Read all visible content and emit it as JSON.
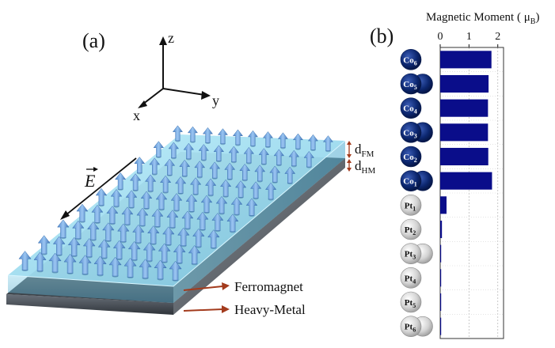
{
  "panel_a": {
    "label": "(a)",
    "axes": {
      "z": "z",
      "y": "y",
      "x": "x"
    },
    "field_symbol": "E",
    "d_fm": {
      "base": "d",
      "sub": "FM"
    },
    "d_hm": {
      "base": "d",
      "sub": "HM"
    },
    "ferromagnet_label": "Ferromagnet",
    "heavy_metal_label": "Heavy-Metal",
    "colors": {
      "ferromagnet_layer": "#a9e2f3",
      "heavy_metal_layer": "#4a5058",
      "arrow_fill": "#6fa4e0",
      "callout_arrow": "#a33b1d"
    }
  },
  "panel_b": {
    "label": "(b)",
    "atoms": [
      {
        "element": "Co",
        "index": "6",
        "color": "#0c2770",
        "text_color": "#ffffff",
        "pair": false
      },
      {
        "element": "Co",
        "index": "5",
        "color": "#0c2770",
        "text_color": "#ffffff",
        "pair": true
      },
      {
        "element": "Co",
        "index": "4",
        "color": "#0c2770",
        "text_color": "#ffffff",
        "pair": false
      },
      {
        "element": "Co",
        "index": "3",
        "color": "#0c2770",
        "text_color": "#ffffff",
        "pair": true
      },
      {
        "element": "Co",
        "index": "2",
        "color": "#0c2770",
        "text_color": "#ffffff",
        "pair": false
      },
      {
        "element": "Co",
        "index": "1",
        "color": "#0c2770",
        "text_color": "#ffffff",
        "pair": true
      },
      {
        "element": "Pt",
        "index": "1",
        "color": "#cfcfcf",
        "text_color": "#111111",
        "pair": false
      },
      {
        "element": "Pt",
        "index": "2",
        "color": "#cfcfcf",
        "text_color": "#111111",
        "pair": false
      },
      {
        "element": "Pt",
        "index": "3",
        "color": "#cfcfcf",
        "text_color": "#111111",
        "pair": true
      },
      {
        "element": "Pt",
        "index": "4",
        "color": "#cfcfcf",
        "text_color": "#111111",
        "pair": false
      },
      {
        "element": "Pt",
        "index": "5",
        "color": "#cfcfcf",
        "text_color": "#111111",
        "pair": false
      },
      {
        "element": "Pt",
        "index": "6",
        "color": "#cfcfcf",
        "text_color": "#111111",
        "pair": true
      }
    ]
  },
  "chart_data": {
    "type": "bar",
    "orientation": "horizontal",
    "title": "Magnetic Moment ( μB)",
    "title_parts": {
      "main": "Magnetic Moment ( ",
      "symbol": "μ",
      "sub": "B",
      "close": ")"
    },
    "categories": [
      "Co6",
      "Co5",
      "Co4",
      "Co3",
      "Co2",
      "Co1",
      "Pt1",
      "Pt2",
      "Pt3",
      "Pt4",
      "Pt5",
      "Pt6"
    ],
    "values": [
      1.78,
      1.68,
      1.66,
      1.66,
      1.67,
      1.8,
      0.22,
      0.06,
      0.02,
      0.01,
      0.03,
      0.02
    ],
    "xlim": [
      0,
      2.2
    ],
    "xticks": [
      "0",
      "1",
      "2"
    ],
    "xtick_values": [
      0,
      1,
      2
    ],
    "grid": true,
    "bar_color": "#0a0d8a"
  }
}
